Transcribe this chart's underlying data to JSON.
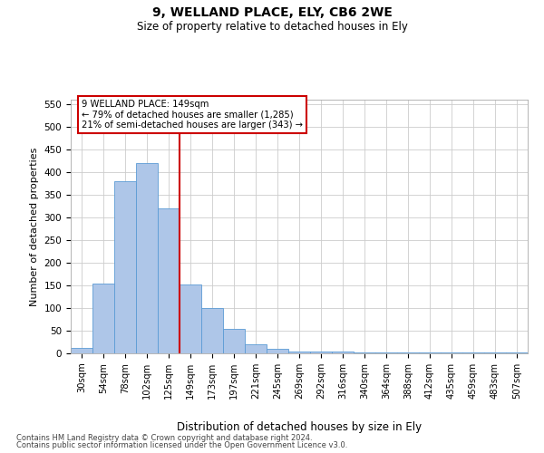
{
  "title1": "9, WELLAND PLACE, ELY, CB6 2WE",
  "title2": "Size of property relative to detached houses in Ely",
  "xlabel": "Distribution of detached houses by size in Ely",
  "ylabel": "Number of detached properties",
  "categories": [
    "30sqm",
    "54sqm",
    "78sqm",
    "102sqm",
    "125sqm",
    "149sqm",
    "173sqm",
    "197sqm",
    "221sqm",
    "245sqm",
    "269sqm",
    "292sqm",
    "316sqm",
    "340sqm",
    "364sqm",
    "388sqm",
    "412sqm",
    "435sqm",
    "459sqm",
    "483sqm",
    "507sqm"
  ],
  "bar_heights": [
    13,
    155,
    381,
    420,
    320,
    152,
    100,
    55,
    20,
    10,
    5,
    4,
    5,
    3,
    2,
    3,
    2,
    3,
    2,
    3,
    2
  ],
  "bar_color": "#aec6e8",
  "bar_edge_color": "#5b9bd5",
  "vline_color": "#cc0000",
  "annotation_text": "9 WELLAND PLACE: 149sqm\n← 79% of detached houses are smaller (1,285)\n21% of semi-detached houses are larger (343) →",
  "annotation_box_color": "#ffffff",
  "annotation_box_edge_color": "#cc0000",
  "ylim": [
    0,
    560
  ],
  "yticks": [
    0,
    50,
    100,
    150,
    200,
    250,
    300,
    350,
    400,
    450,
    500,
    550
  ],
  "footnote1": "Contains HM Land Registry data © Crown copyright and database right 2024.",
  "footnote2": "Contains public sector information licensed under the Open Government Licence v3.0.",
  "background_color": "#ffffff",
  "grid_color": "#cccccc"
}
